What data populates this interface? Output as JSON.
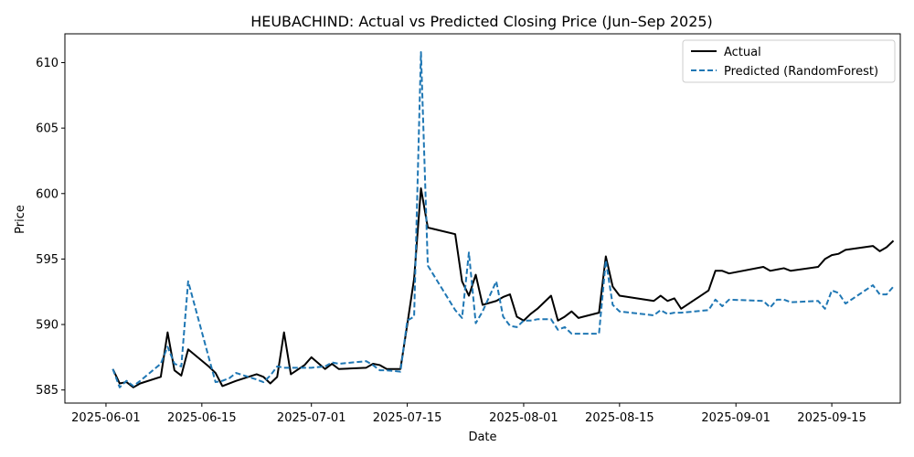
{
  "chart_data": {
    "type": "line",
    "title": "HEUBACHIND: Actual vs Predicted Closing Price (Jun–Sep 2025)",
    "xlabel": "Date",
    "ylabel": "Price",
    "xlim": [
      "2025-05-26",
      "2025-09-25"
    ],
    "ylim": [
      584,
      612.2
    ],
    "x_ticks": [
      "2025-06-01",
      "2025-06-15",
      "2025-07-01",
      "2025-07-15",
      "2025-08-01",
      "2025-08-15",
      "2025-09-01",
      "2025-09-15"
    ],
    "y_ticks": [
      585,
      590,
      595,
      600,
      605,
      610
    ],
    "grid": false,
    "legend_position": "top-right",
    "series": [
      {
        "name": "Actual",
        "color": "#000000",
        "style": "solid",
        "points": [
          [
            "2025-06-02",
            586.6
          ],
          [
            "2025-06-03",
            585.5
          ],
          [
            "2025-06-04",
            585.6
          ],
          [
            "2025-06-05",
            585.2
          ],
          [
            "2025-06-06",
            585.5
          ],
          [
            "2025-06-09",
            586.0
          ],
          [
            "2025-06-10",
            589.4
          ],
          [
            "2025-06-11",
            586.5
          ],
          [
            "2025-06-12",
            586.1
          ],
          [
            "2025-06-13",
            588.1
          ],
          [
            "2025-06-16",
            586.8
          ],
          [
            "2025-06-17",
            586.3
          ],
          [
            "2025-06-18",
            585.3
          ],
          [
            "2025-06-19",
            585.5
          ],
          [
            "2025-06-20",
            585.7
          ],
          [
            "2025-06-23",
            586.2
          ],
          [
            "2025-06-24",
            586.0
          ],
          [
            "2025-06-25",
            585.5
          ],
          [
            "2025-06-26",
            586.0
          ],
          [
            "2025-06-27",
            589.4
          ],
          [
            "2025-06-28",
            586.2
          ],
          [
            "2025-06-30",
            586.9
          ],
          [
            "2025-07-01",
            587.5
          ],
          [
            "2025-07-03",
            586.6
          ],
          [
            "2025-07-04",
            587.0
          ],
          [
            "2025-07-05",
            586.6
          ],
          [
            "2025-07-09",
            586.7
          ],
          [
            "2025-07-10",
            587.0
          ],
          [
            "2025-07-11",
            586.9
          ],
          [
            "2025-07-12",
            586.6
          ],
          [
            "2025-07-14",
            586.6
          ],
          [
            "2025-07-15",
            590.0
          ],
          [
            "2025-07-16",
            593.5
          ],
          [
            "2025-07-17",
            600.4
          ],
          [
            "2025-07-18",
            597.4
          ],
          [
            "2025-07-22",
            596.9
          ],
          [
            "2025-07-23",
            593.3
          ],
          [
            "2025-07-24",
            592.2
          ],
          [
            "2025-07-25",
            593.8
          ],
          [
            "2025-07-26",
            591.5
          ],
          [
            "2025-07-28",
            591.8
          ],
          [
            "2025-07-29",
            592.1
          ],
          [
            "2025-07-30",
            592.3
          ],
          [
            "2025-07-31",
            590.6
          ],
          [
            "2025-08-01",
            590.3
          ],
          [
            "2025-08-02",
            590.8
          ],
          [
            "2025-08-03",
            591.2
          ],
          [
            "2025-08-05",
            592.2
          ],
          [
            "2025-08-06",
            590.3
          ],
          [
            "2025-08-07",
            590.6
          ],
          [
            "2025-08-08",
            591.0
          ],
          [
            "2025-08-09",
            590.5
          ],
          [
            "2025-08-12",
            590.9
          ],
          [
            "2025-08-13",
            595.2
          ],
          [
            "2025-08-14",
            592.9
          ],
          [
            "2025-08-15",
            592.2
          ],
          [
            "2025-08-20",
            591.8
          ],
          [
            "2025-08-21",
            592.2
          ],
          [
            "2025-08-22",
            591.8
          ],
          [
            "2025-08-23",
            592.0
          ],
          [
            "2025-08-24",
            591.2
          ],
          [
            "2025-08-28",
            592.6
          ],
          [
            "2025-08-29",
            594.1
          ],
          [
            "2025-08-30",
            594.1
          ],
          [
            "2025-08-31",
            593.9
          ],
          [
            "2025-09-05",
            594.4
          ],
          [
            "2025-09-06",
            594.1
          ],
          [
            "2025-09-07",
            594.2
          ],
          [
            "2025-09-08",
            594.3
          ],
          [
            "2025-09-09",
            594.1
          ],
          [
            "2025-09-13",
            594.4
          ],
          [
            "2025-09-14",
            595.0
          ],
          [
            "2025-09-15",
            595.3
          ],
          [
            "2025-09-16",
            595.4
          ],
          [
            "2025-09-17",
            595.7
          ],
          [
            "2025-09-21",
            596.0
          ],
          [
            "2025-09-22",
            595.6
          ],
          [
            "2025-09-23",
            595.9
          ],
          [
            "2025-09-24",
            596.4
          ]
        ]
      },
      {
        "name": "Predicted (RandomForest)",
        "color": "#1f77b4",
        "style": "dashed",
        "points": [
          [
            "2025-06-02",
            586.6
          ],
          [
            "2025-06-03",
            585.2
          ],
          [
            "2025-06-04",
            585.7
          ],
          [
            "2025-06-05",
            585.3
          ],
          [
            "2025-06-06",
            585.7
          ],
          [
            "2025-06-09",
            587.0
          ],
          [
            "2025-06-10",
            588.3
          ],
          [
            "2025-06-11",
            587.0
          ],
          [
            "2025-06-12",
            586.8
          ],
          [
            "2025-06-13",
            593.3
          ],
          [
            "2025-06-16",
            587.5
          ],
          [
            "2025-06-17",
            585.6
          ],
          [
            "2025-06-18",
            585.7
          ],
          [
            "2025-06-19",
            585.9
          ],
          [
            "2025-06-20",
            586.3
          ],
          [
            "2025-06-23",
            585.8
          ],
          [
            "2025-06-24",
            585.6
          ],
          [
            "2025-06-25",
            586.1
          ],
          [
            "2025-06-26",
            586.8
          ],
          [
            "2025-06-27",
            586.7
          ],
          [
            "2025-06-28",
            586.7
          ],
          [
            "2025-06-30",
            586.7
          ],
          [
            "2025-07-01",
            586.7
          ],
          [
            "2025-07-03",
            586.8
          ],
          [
            "2025-07-04",
            587.1
          ],
          [
            "2025-07-05",
            587.0
          ],
          [
            "2025-07-09",
            587.2
          ],
          [
            "2025-07-10",
            586.9
          ],
          [
            "2025-07-11",
            586.5
          ],
          [
            "2025-07-12",
            586.5
          ],
          [
            "2025-07-14",
            586.4
          ],
          [
            "2025-07-15",
            590.3
          ],
          [
            "2025-07-16",
            590.6
          ],
          [
            "2025-07-17",
            610.8
          ],
          [
            "2025-07-18",
            594.5
          ],
          [
            "2025-07-22",
            591.1
          ],
          [
            "2025-07-23",
            590.5
          ],
          [
            "2025-07-24",
            595.5
          ],
          [
            "2025-07-25",
            590.1
          ],
          [
            "2025-07-26",
            591.0
          ],
          [
            "2025-07-28",
            593.3
          ],
          [
            "2025-07-29",
            590.6
          ],
          [
            "2025-07-30",
            589.9
          ],
          [
            "2025-07-31",
            589.8
          ],
          [
            "2025-08-01",
            590.3
          ],
          [
            "2025-08-02",
            590.3
          ],
          [
            "2025-08-03",
            590.4
          ],
          [
            "2025-08-05",
            590.4
          ],
          [
            "2025-08-06",
            589.6
          ],
          [
            "2025-08-07",
            589.8
          ],
          [
            "2025-08-08",
            589.3
          ],
          [
            "2025-08-09",
            589.3
          ],
          [
            "2025-08-12",
            589.3
          ],
          [
            "2025-08-13",
            594.9
          ],
          [
            "2025-08-14",
            591.5
          ],
          [
            "2025-08-15",
            591.0
          ],
          [
            "2025-08-20",
            590.7
          ],
          [
            "2025-08-21",
            591.1
          ],
          [
            "2025-08-22",
            590.8
          ],
          [
            "2025-08-23",
            590.9
          ],
          [
            "2025-08-24",
            590.9
          ],
          [
            "2025-08-28",
            591.1
          ],
          [
            "2025-08-29",
            591.9
          ],
          [
            "2025-08-30",
            591.4
          ],
          [
            "2025-08-31",
            591.9
          ],
          [
            "2025-09-05",
            591.8
          ],
          [
            "2025-09-06",
            591.3
          ],
          [
            "2025-09-07",
            591.9
          ],
          [
            "2025-09-08",
            591.9
          ],
          [
            "2025-09-09",
            591.7
          ],
          [
            "2025-09-13",
            591.8
          ],
          [
            "2025-09-14",
            591.2
          ],
          [
            "2025-09-15",
            592.6
          ],
          [
            "2025-09-16",
            592.4
          ],
          [
            "2025-09-17",
            591.6
          ],
          [
            "2025-09-21",
            593.0
          ],
          [
            "2025-09-22",
            592.3
          ],
          [
            "2025-09-23",
            592.3
          ],
          [
            "2025-09-24",
            592.9
          ]
        ]
      }
    ]
  }
}
